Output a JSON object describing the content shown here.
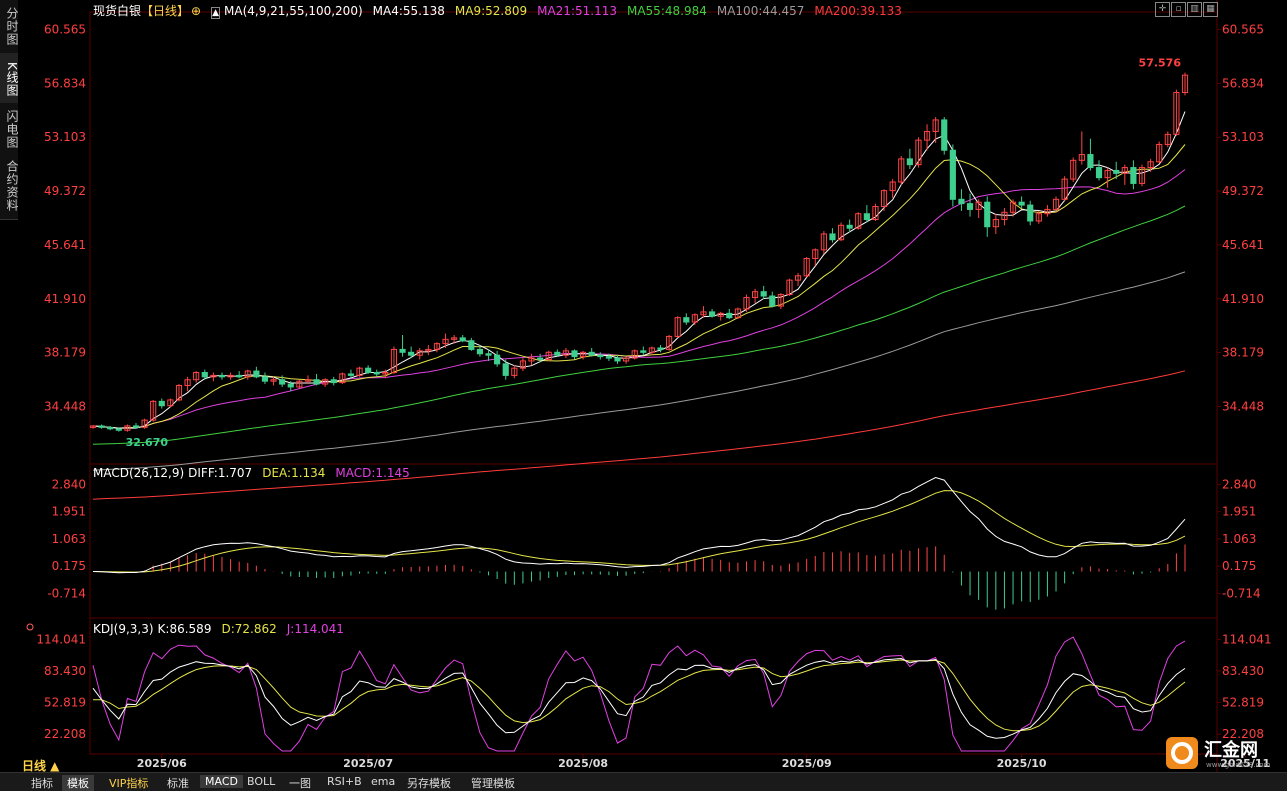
{
  "sidebar": {
    "tabs": [
      "分时图",
      "K线图",
      "闪电图",
      "合约资料"
    ],
    "active": 1
  },
  "header": {
    "symbol": "现货白银",
    "period_tag": "【日线】",
    "ma_label": "MA(4,9,21,55,100,200)",
    "ma_values": [
      {
        "text": "MA4:55.138",
        "color": "#ffffff"
      },
      {
        "text": "MA9:52.809",
        "color": "#e4e44a"
      },
      {
        "text": "MA21:51.113",
        "color": "#e040e0"
      },
      {
        "text": "MA55:48.984",
        "color": "#40d040"
      },
      {
        "text": "MA100:44.457",
        "color": "#9a9a9a"
      },
      {
        "text": "MA200:39.133",
        "color": "#ff3b3b"
      }
    ]
  },
  "macd_header": {
    "label": "MACD(26,12,9)",
    "diff": "DIFF:1.707",
    "dea": "DEA:1.134",
    "macd": "MACD:1.145"
  },
  "kdj_header": {
    "label": "KDJ(9,3,3)",
    "k": "K:86.589",
    "d": "D:72.862",
    "j": "J:114.041"
  },
  "colors": {
    "up": "#ff4444",
    "down": "#3ecf8e",
    "axis_text": "#ff4040",
    "grid": "#2a0000"
  },
  "bottom_tabs": [
    "指标",
    "模板",
    "VIP指标",
    "标准",
    "MACD",
    "BOLL",
    "一图",
    "RSI+B",
    "ema",
    "另存模板",
    "管理模板"
  ],
  "period_button": "日线 ▲",
  "logo_text": "汇金网",
  "logo_url": "www.gold678.com",
  "chart_data": {
    "type": "candlestick",
    "price_axis": {
      "ticks": [
        "60.565",
        "56.834",
        "53.103",
        "49.372",
        "45.641",
        "41.910",
        "38.179",
        "34.448"
      ],
      "tick_values": [
        60.565,
        56.834,
        53.103,
        49.372,
        45.641,
        41.91,
        38.179,
        34.448
      ],
      "ylim": [
        30.6,
        61.5
      ]
    },
    "x_labels": [
      "2025/06",
      "2025/07",
      "2025/08",
      "2025/09",
      "2025/10",
      "2025/11"
    ],
    "x_label_index": [
      8,
      32,
      57,
      83,
      108,
      134
    ],
    "annotations": {
      "high": "57.576",
      "low": "32.670"
    },
    "candles": [
      [
        33.0,
        33.1,
        32.9,
        33.1
      ],
      [
        33.1,
        33.2,
        32.9,
        33.0
      ],
      [
        33.0,
        33.1,
        32.8,
        32.9
      ],
      [
        32.9,
        33.0,
        32.7,
        32.8
      ],
      [
        32.8,
        33.2,
        32.7,
        33.1
      ],
      [
        33.1,
        33.3,
        32.9,
        33.0
      ],
      [
        33.0,
        33.6,
        32.9,
        33.5
      ],
      [
        33.5,
        34.9,
        33.4,
        34.8
      ],
      [
        34.8,
        35.0,
        34.3,
        34.5
      ],
      [
        34.5,
        35.0,
        34.4,
        34.9
      ],
      [
        34.9,
        36.0,
        34.8,
        35.9
      ],
      [
        35.9,
        36.5,
        35.5,
        36.3
      ],
      [
        36.3,
        36.9,
        36.1,
        36.8
      ],
      [
        36.8,
        37.0,
        36.3,
        36.5
      ],
      [
        36.5,
        36.8,
        36.2,
        36.6
      ],
      [
        36.6,
        36.8,
        36.3,
        36.5
      ],
      [
        36.5,
        36.8,
        36.3,
        36.6
      ],
      [
        36.6,
        36.9,
        36.4,
        36.5
      ],
      [
        36.5,
        37.0,
        36.3,
        36.9
      ],
      [
        36.9,
        37.2,
        36.4,
        36.5
      ],
      [
        36.5,
        36.8,
        36.0,
        36.2
      ],
      [
        36.2,
        36.5,
        35.9,
        36.3
      ],
      [
        36.3,
        36.6,
        35.8,
        36.0
      ],
      [
        36.0,
        36.2,
        35.5,
        35.8
      ],
      [
        35.8,
        36.3,
        35.7,
        36.2
      ],
      [
        36.2,
        36.6,
        36.0,
        36.3
      ],
      [
        36.3,
        36.7,
        35.9,
        36.0
      ],
      [
        36.0,
        36.4,
        35.8,
        36.3
      ],
      [
        36.3,
        36.5,
        35.9,
        36.1
      ],
      [
        36.1,
        36.8,
        36.0,
        36.7
      ],
      [
        36.7,
        37.0,
        36.4,
        36.6
      ],
      [
        36.6,
        37.2,
        36.5,
        37.1
      ],
      [
        37.1,
        37.3,
        36.7,
        36.8
      ],
      [
        36.8,
        37.0,
        36.5,
        36.7
      ],
      [
        36.7,
        37.0,
        36.4,
        36.8
      ],
      [
        36.8,
        38.6,
        36.7,
        38.4
      ],
      [
        38.4,
        39.4,
        37.9,
        38.2
      ],
      [
        38.2,
        38.6,
        37.8,
        38.0
      ],
      [
        38.0,
        38.5,
        37.7,
        38.3
      ],
      [
        38.3,
        38.7,
        38.0,
        38.4
      ],
      [
        38.4,
        38.9,
        38.2,
        38.8
      ],
      [
        38.8,
        39.5,
        38.5,
        39.1
      ],
      [
        39.1,
        39.4,
        38.8,
        39.2
      ],
      [
        39.2,
        39.4,
        38.9,
        39.0
      ],
      [
        39.0,
        39.2,
        38.3,
        38.4
      ],
      [
        38.4,
        38.7,
        37.9,
        38.1
      ],
      [
        38.1,
        38.4,
        37.6,
        38.0
      ],
      [
        38.0,
        38.3,
        37.2,
        37.4
      ],
      [
        37.4,
        37.7,
        36.3,
        36.6
      ],
      [
        36.6,
        37.3,
        36.4,
        37.1
      ],
      [
        37.1,
        37.8,
        36.9,
        37.6
      ],
      [
        37.6,
        38.1,
        37.3,
        37.8
      ],
      [
        37.8,
        38.1,
        37.5,
        37.7
      ],
      [
        37.7,
        38.3,
        37.6,
        38.2
      ],
      [
        38.2,
        38.4,
        37.9,
        38.0
      ],
      [
        38.0,
        38.5,
        37.8,
        38.3
      ],
      [
        38.3,
        38.4,
        37.7,
        37.9
      ],
      [
        37.9,
        38.3,
        37.7,
        38.2
      ],
      [
        38.2,
        38.5,
        37.9,
        38.0
      ],
      [
        38.0,
        38.2,
        37.7,
        37.9
      ],
      [
        37.9,
        38.1,
        37.6,
        37.8
      ],
      [
        37.8,
        38.0,
        37.4,
        37.6
      ],
      [
        37.6,
        37.9,
        37.4,
        37.8
      ],
      [
        37.8,
        38.4,
        37.7,
        38.3
      ],
      [
        38.3,
        38.6,
        38.0,
        38.2
      ],
      [
        38.2,
        38.6,
        38.0,
        38.5
      ],
      [
        38.5,
        38.7,
        38.2,
        38.4
      ],
      [
        38.4,
        39.4,
        38.3,
        39.3
      ],
      [
        39.3,
        40.7,
        39.2,
        40.6
      ],
      [
        40.6,
        40.9,
        40.1,
        40.3
      ],
      [
        40.3,
        40.9,
        40.1,
        40.8
      ],
      [
        40.8,
        41.4,
        40.6,
        41.0
      ],
      [
        41.0,
        41.2,
        40.6,
        40.7
      ],
      [
        40.7,
        41.0,
        40.4,
        40.9
      ],
      [
        40.9,
        41.2,
        40.5,
        40.6
      ],
      [
        40.6,
        41.3,
        40.5,
        41.2
      ],
      [
        41.2,
        42.2,
        41.0,
        42.0
      ],
      [
        42.0,
        42.6,
        41.6,
        42.4
      ],
      [
        42.4,
        42.8,
        41.9,
        42.1
      ],
      [
        42.1,
        42.4,
        41.3,
        41.4
      ],
      [
        41.4,
        42.3,
        41.2,
        42.2
      ],
      [
        42.2,
        43.3,
        42.1,
        43.2
      ],
      [
        43.2,
        43.7,
        42.8,
        43.5
      ],
      [
        43.5,
        44.8,
        43.4,
        44.7
      ],
      [
        44.7,
        45.4,
        44.2,
        45.3
      ],
      [
        45.3,
        46.6,
        45.0,
        46.4
      ],
      [
        46.4,
        46.8,
        45.8,
        46.0
      ],
      [
        46.0,
        47.2,
        45.9,
        47.0
      ],
      [
        47.0,
        47.4,
        46.5,
        46.8
      ],
      [
        46.8,
        47.9,
        46.7,
        47.8
      ],
      [
        47.8,
        48.4,
        47.2,
        47.4
      ],
      [
        47.4,
        48.5,
        47.3,
        48.3
      ],
      [
        48.3,
        49.5,
        48.0,
        49.4
      ],
      [
        49.4,
        50.2,
        48.9,
        50.0
      ],
      [
        50.0,
        51.8,
        49.8,
        51.6
      ],
      [
        51.6,
        52.3,
        50.9,
        51.2
      ],
      [
        51.2,
        53.1,
        51.0,
        52.9
      ],
      [
        52.9,
        54.0,
        52.2,
        53.5
      ],
      [
        53.5,
        54.5,
        52.7,
        54.3
      ],
      [
        54.3,
        54.5,
        51.9,
        52.2
      ],
      [
        52.2,
        52.6,
        48.3,
        48.8
      ],
      [
        48.8,
        49.5,
        48.0,
        48.5
      ],
      [
        48.5,
        49.2,
        47.6,
        48.1
      ],
      [
        48.1,
        48.8,
        47.5,
        48.6
      ],
      [
        48.6,
        49.0,
        46.2,
        46.9
      ],
      [
        46.9,
        47.8,
        46.4,
        47.4
      ],
      [
        47.4,
        48.2,
        47.0,
        47.9
      ],
      [
        47.9,
        48.8,
        47.6,
        48.6
      ],
      [
        48.6,
        49.0,
        48.2,
        48.4
      ],
      [
        48.4,
        48.7,
        47.0,
        47.3
      ],
      [
        47.3,
        48.0,
        47.1,
        47.8
      ],
      [
        47.8,
        48.4,
        47.6,
        48.1
      ],
      [
        48.1,
        49.0,
        47.9,
        48.8
      ],
      [
        48.8,
        50.4,
        48.7,
        50.2
      ],
      [
        50.2,
        51.7,
        50.0,
        51.5
      ],
      [
        51.5,
        53.5,
        51.2,
        51.9
      ],
      [
        51.9,
        53.0,
        50.8,
        51.0
      ],
      [
        51.0,
        51.5,
        50.1,
        50.3
      ],
      [
        50.3,
        51.0,
        49.6,
        50.8
      ],
      [
        50.8,
        51.4,
        50.2,
        50.6
      ],
      [
        50.6,
        51.2,
        49.8,
        51.0
      ],
      [
        51.0,
        51.5,
        49.5,
        49.9
      ],
      [
        49.9,
        51.2,
        49.7,
        51.0
      ],
      [
        51.0,
        51.6,
        50.7,
        51.4
      ],
      [
        51.4,
        52.8,
        51.3,
        52.6
      ],
      [
        52.6,
        53.5,
        52.4,
        53.3
      ],
      [
        53.3,
        56.4,
        53.2,
        56.2
      ],
      [
        56.2,
        57.576,
        56.0,
        57.4
      ]
    ],
    "macd": {
      "ticks": [
        "2.840",
        "1.951",
        "1.063",
        "0.175",
        "-0.714"
      ],
      "tick_values": [
        2.84,
        1.951,
        1.063,
        0.175,
        -0.714
      ],
      "ylim": [
        -1.45,
        3.05
      ]
    },
    "kdj": {
      "ticks": [
        "114.041",
        "83.430",
        "52.819",
        "22.208"
      ],
      "tick_values": [
        114.041,
        83.43,
        52.819,
        22.208
      ],
      "ylim": [
        5,
        123
      ]
    }
  }
}
